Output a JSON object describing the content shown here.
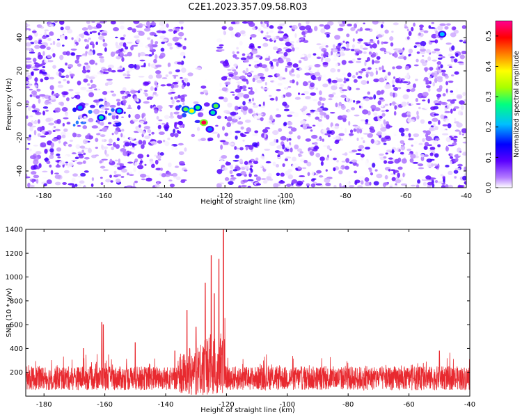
{
  "figure_title": "C2E1.2023.357.09.58.R03",
  "chart_data": [
    {
      "type": "heatmap",
      "xlabel": "Height of straight line (km)",
      "ylabel": "Frequency (Hz)",
      "xlim": [
        -186,
        -40
      ],
      "ylim": [
        -50,
        50
      ],
      "x_ticks": [
        -180,
        -160,
        -140,
        -120,
        -100,
        -80,
        -60,
        -40
      ],
      "y_ticks": [
        -40,
        -20,
        0,
        20,
        40
      ],
      "blank_band_x": [
        -133,
        -122
      ],
      "hotspots": [
        {
          "x": -161,
          "y": -8,
          "value": 0.25
        },
        {
          "x": -155,
          "y": -4,
          "value": 0.22
        },
        {
          "x": -168,
          "y": -2,
          "value": 0.2
        },
        {
          "x": -133,
          "y": -3,
          "value": 0.3
        },
        {
          "x": -131,
          "y": -4,
          "value": 0.38
        },
        {
          "x": -129,
          "y": -2,
          "value": 0.28
        },
        {
          "x": -127,
          "y": -11,
          "value": 0.52
        },
        {
          "x": -124,
          "y": -5,
          "value": 0.25
        },
        {
          "x": -123,
          "y": -1,
          "value": 0.3
        },
        {
          "x": -125,
          "y": -15,
          "value": 0.2
        },
        {
          "x": -48,
          "y": 42,
          "value": 0.22
        }
      ],
      "colorbar": {
        "label": "Normalized spectral amplitude",
        "min": 0.0,
        "max": 0.55,
        "ticks": [
          "0.0",
          "0.1",
          "0.2",
          "0.3",
          "0.4",
          "0.5"
        ],
        "colors": [
          "#ffffff",
          "#b47cff",
          "#5b00ff",
          "#0000ff",
          "#00bfff",
          "#00ff80",
          "#a8ff00",
          "#ffff00",
          "#ff8000",
          "#ff0000",
          "#ff0090"
        ]
      }
    },
    {
      "type": "line",
      "xlabel": "Height of straight line (km)",
      "ylabel": "SNR (10 * v/v)",
      "xlim": [
        -186,
        -40
      ],
      "ylim": [
        0,
        1400
      ],
      "x_ticks": [
        -180,
        -160,
        -140,
        -120,
        -100,
        -80,
        -60,
        -40
      ],
      "y_ticks": [
        200,
        400,
        600,
        800,
        1000,
        1200,
        1400
      ],
      "color": "#e8292f",
      "baseline_range": [
        50,
        250
      ],
      "peaks": [
        {
          "x": -161,
          "y": 620
        },
        {
          "x": -160.5,
          "y": 600
        },
        {
          "x": -167,
          "y": 400
        },
        {
          "x": -150,
          "y": 450
        },
        {
          "x": -137,
          "y": 380
        },
        {
          "x": -133,
          "y": 720
        },
        {
          "x": -130,
          "y": 580
        },
        {
          "x": -127,
          "y": 950
        },
        {
          "x": -125,
          "y": 1180
        },
        {
          "x": -124,
          "y": 860
        },
        {
          "x": -122.5,
          "y": 1150
        },
        {
          "x": -121,
          "y": 1400
        },
        {
          "x": -50,
          "y": 380
        }
      ]
    }
  ]
}
